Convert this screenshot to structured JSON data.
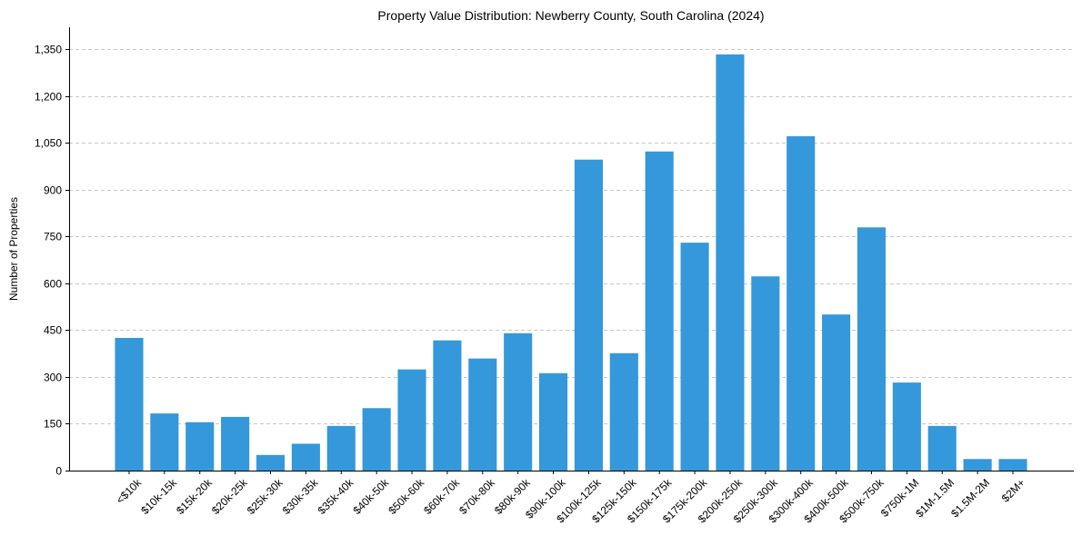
{
  "chart_data": {
    "type": "bar",
    "title": "Property Value Distribution: Newberry County, South Carolina (2024)",
    "xlabel": "",
    "ylabel": "Number of Properties",
    "ylim": [
      0,
      1420
    ],
    "yticks": [
      0,
      150,
      300,
      450,
      600,
      750,
      900,
      1050,
      1200,
      1350
    ],
    "ytick_labels": [
      "0",
      "150",
      "300",
      "450",
      "600",
      "750",
      "900",
      "1,050",
      "1,200",
      "1,350"
    ],
    "grid": "y-dashed",
    "bar_color": "#3498db",
    "categories": [
      "<$10k",
      "$10k-15k",
      "$15k-20k",
      "$20k-25k",
      "$25k-30k",
      "$30k-35k",
      "$35k-40k",
      "$40k-50k",
      "$50k-60k",
      "$60k-70k",
      "$70k-80k",
      "$80k-90k",
      "$90k-100k",
      "$100k-125k",
      "$125k-150k",
      "$150k-175k",
      "$175k-200k",
      "$200k-250k",
      "$250k-300k",
      "$300k-400k",
      "$400k-500k",
      "$500k-750k",
      "$750k-1M",
      "$1M-1.5M",
      "$1.5M-2M",
      "$2M+"
    ],
    "values": [
      425,
      183,
      155,
      172,
      50,
      86,
      143,
      200,
      324,
      417,
      359,
      440,
      312,
      996,
      376,
      1022,
      730,
      1333,
      622,
      1071,
      500,
      779,
      282,
      143,
      37,
      37
    ]
  }
}
